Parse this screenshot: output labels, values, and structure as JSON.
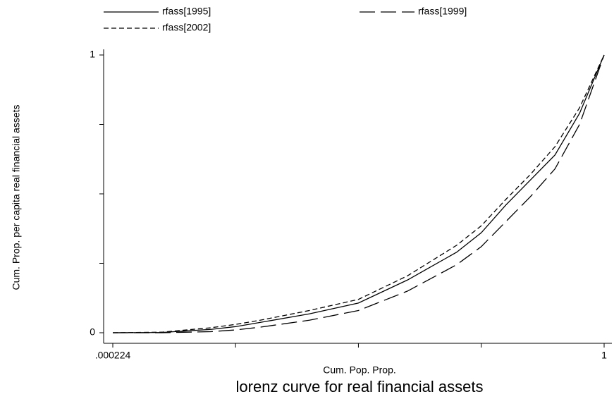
{
  "chart_data": {
    "type": "line",
    "title": "lorenz curve for real financial assets",
    "x_label": "Cum. Pop. Prop.",
    "y_label": "Cum. Prop. per capita real financial assets",
    "x": [
      0.000224,
      0.1,
      0.2,
      0.25,
      0.3,
      0.4,
      0.5,
      0.6,
      0.7,
      0.75,
      0.8,
      0.85,
      0.9,
      0.95,
      1
    ],
    "series": [
      {
        "name": "rfass[1995]",
        "color": "#000000",
        "dash": "solid",
        "values": [
          0,
          0.001,
          0.012,
          0.022,
          0.037,
          0.068,
          0.107,
          0.19,
          0.29,
          0.36,
          0.46,
          0.55,
          0.64,
          0.79,
          1
        ]
      },
      {
        "name": "rfass[1999]",
        "color": "#000000",
        "dash": "longdash",
        "values": [
          0,
          0,
          0.004,
          0.01,
          0.02,
          0.045,
          0.08,
          0.15,
          0.245,
          0.31,
          0.4,
          0.49,
          0.59,
          0.75,
          1
        ]
      },
      {
        "name": "rfass[2002]",
        "color": "#000000",
        "dash": "shortdash",
        "values": [
          0,
          0.002,
          0.018,
          0.03,
          0.045,
          0.08,
          0.12,
          0.205,
          0.315,
          0.385,
          0.48,
          0.57,
          0.67,
          0.81,
          1
        ]
      }
    ],
    "xlim": [
      0.000224,
      1
    ],
    "ylim": [
      0,
      1
    ],
    "xticks": [
      {
        "value": 0.000224,
        "label": ".000224"
      },
      {
        "value": 0.25,
        "label": null
      },
      {
        "value": 0.5,
        "label": null
      },
      {
        "value": 0.75,
        "label": null
      },
      1
    ],
    "yticks": [
      0,
      {
        "value": 0.25,
        "label": null
      },
      {
        "value": 0.5,
        "label": null
      },
      {
        "value": 0.75,
        "label": null
      },
      1
    ],
    "grid": false,
    "legend": "top"
  }
}
